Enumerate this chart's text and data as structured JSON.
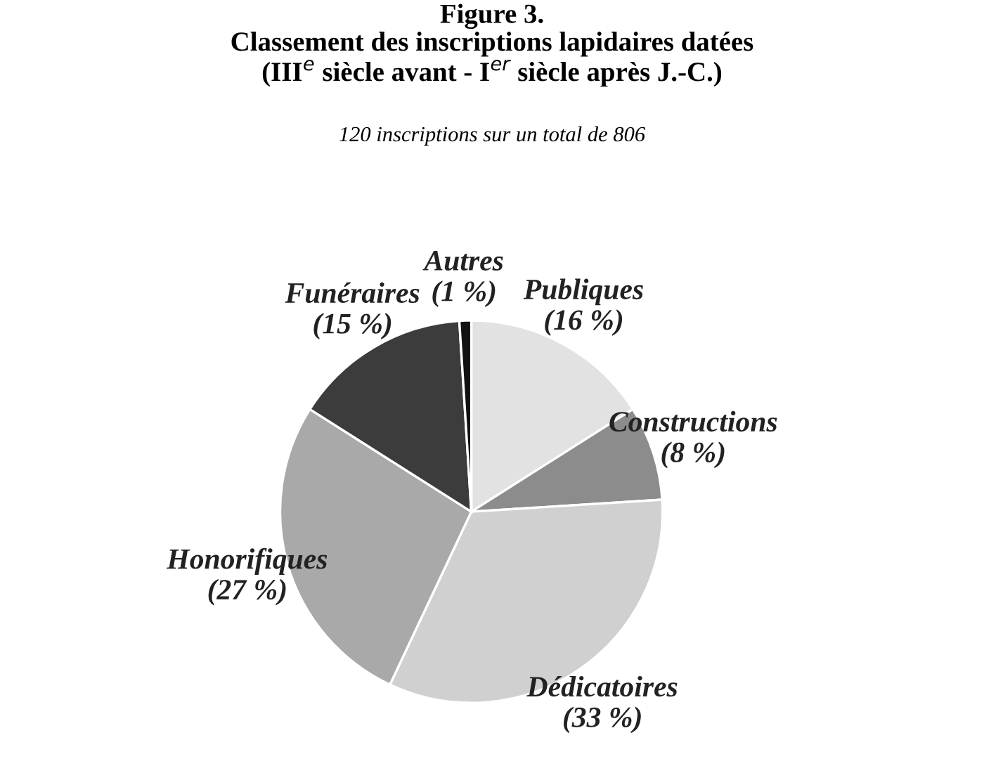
{
  "chart_data": {
    "type": "pie",
    "title": "Figure 3.\nClassement des inscriptions lapidaires datées\n(III$^{e}$ siècle avant - I$^{er}$ siècle après J.-C.)",
    "subtitle": "120 inscriptions sur un total de 806",
    "categories": [
      "Publiques",
      "Constructions",
      "Dédicatoires",
      "Honorifiques",
      "Funéraires",
      "Autres"
    ],
    "values": [
      16,
      8,
      33,
      27,
      15,
      1
    ],
    "value_labels": [
      "(16 %)",
      "(8 %)",
      "(33 %)",
      "(27 %)",
      "(15 %)",
      "(1 %)"
    ],
    "colors": [
      "#e2e2e2",
      "#8c8c8c",
      "#d0d0d0",
      "#a9a9a9",
      "#3c3c3c",
      "#111111"
    ],
    "legend": false
  }
}
